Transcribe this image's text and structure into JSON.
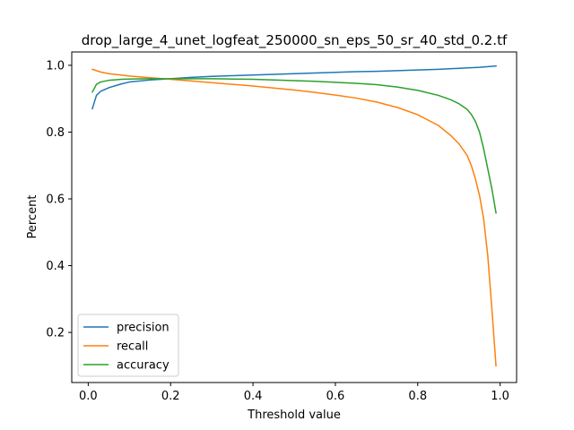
{
  "chart_data": {
    "type": "line",
    "title": "drop_large_4_unet_logfeat_250000_sn_eps_50_sr_40_std_0.2.tf",
    "xlabel": "Threshold value",
    "ylabel": "Percent",
    "xlim": [
      -0.04,
      1.04
    ],
    "ylim": [
      0.05,
      1.04
    ],
    "xticks": [
      0.0,
      0.2,
      0.4,
      0.6,
      0.8,
      1.0
    ],
    "xtick_labels": [
      "0.0",
      "0.2",
      "0.4",
      "0.6",
      "0.8",
      "1.0"
    ],
    "yticks": [
      0.2,
      0.4,
      0.6,
      0.8,
      1.0
    ],
    "ytick_labels": [
      "0.2",
      "0.4",
      "0.6",
      "0.8",
      "1.0"
    ],
    "grid": false,
    "legend_position": "lower-left",
    "series": [
      {
        "name": "precision",
        "color": "#1f77b4",
        "x": [
          0.01,
          0.02,
          0.03,
          0.05,
          0.08,
          0.1,
          0.15,
          0.2,
          0.25,
          0.3,
          0.35,
          0.4,
          0.45,
          0.5,
          0.55,
          0.6,
          0.65,
          0.7,
          0.75,
          0.8,
          0.85,
          0.9,
          0.95,
          0.99
        ],
        "y": [
          0.87,
          0.91,
          0.922,
          0.933,
          0.944,
          0.95,
          0.956,
          0.96,
          0.964,
          0.967,
          0.969,
          0.971,
          0.973,
          0.975,
          0.977,
          0.979,
          0.981,
          0.982,
          0.984,
          0.986,
          0.988,
          0.991,
          0.994,
          0.998
        ]
      },
      {
        "name": "recall",
        "color": "#ff7f0e",
        "x": [
          0.01,
          0.03,
          0.05,
          0.1,
          0.15,
          0.2,
          0.25,
          0.3,
          0.35,
          0.4,
          0.45,
          0.5,
          0.55,
          0.6,
          0.65,
          0.7,
          0.75,
          0.8,
          0.85,
          0.88,
          0.9,
          0.92,
          0.93,
          0.94,
          0.95,
          0.96,
          0.97,
          0.98,
          0.99
        ],
        "y": [
          0.988,
          0.98,
          0.975,
          0.968,
          0.963,
          0.958,
          0.953,
          0.948,
          0.943,
          0.938,
          0.932,
          0.926,
          0.919,
          0.911,
          0.902,
          0.89,
          0.874,
          0.852,
          0.82,
          0.79,
          0.765,
          0.73,
          0.7,
          0.66,
          0.61,
          0.54,
          0.43,
          0.27,
          0.1
        ]
      },
      {
        "name": "accuracy",
        "color": "#2ca02c",
        "x": [
          0.01,
          0.02,
          0.03,
          0.05,
          0.08,
          0.1,
          0.15,
          0.2,
          0.25,
          0.3,
          0.35,
          0.4,
          0.45,
          0.5,
          0.55,
          0.6,
          0.65,
          0.7,
          0.75,
          0.8,
          0.85,
          0.88,
          0.9,
          0.92,
          0.93,
          0.94,
          0.95,
          0.96,
          0.97,
          0.98,
          0.99
        ],
        "y": [
          0.92,
          0.943,
          0.95,
          0.955,
          0.958,
          0.959,
          0.96,
          0.96,
          0.96,
          0.96,
          0.959,
          0.958,
          0.956,
          0.954,
          0.952,
          0.949,
          0.946,
          0.942,
          0.935,
          0.925,
          0.91,
          0.897,
          0.885,
          0.868,
          0.853,
          0.832,
          0.8,
          0.75,
          0.69,
          0.63,
          0.558
        ]
      }
    ]
  }
}
